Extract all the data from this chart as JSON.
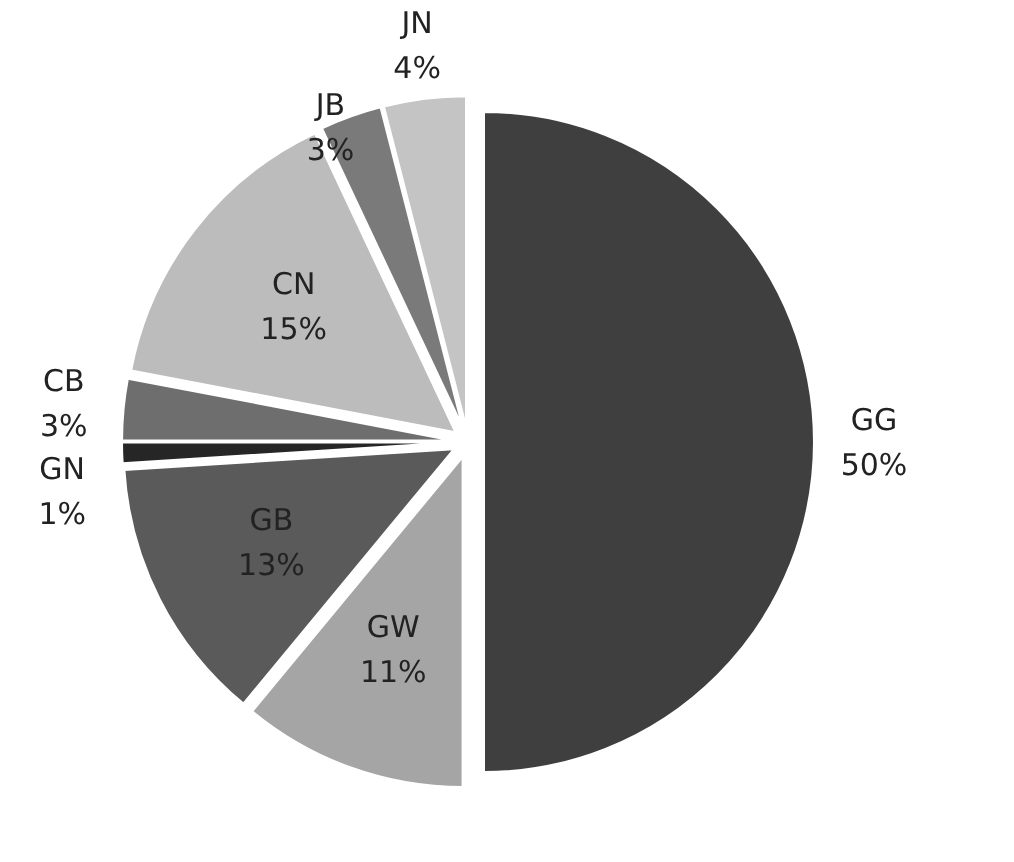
{
  "chart_data": {
    "type": "pie",
    "categories": [
      "GG",
      "GW",
      "GB",
      "GN",
      "CB",
      "CN",
      "JB",
      "JN"
    ],
    "values": [
      50,
      11,
      13,
      1,
      3,
      15,
      3,
      4
    ],
    "value_labels": [
      "50%",
      "11%",
      "13%",
      "1%",
      "3%",
      "15%",
      "3%",
      "4%"
    ],
    "colors": [
      "#3f3f3f",
      "#a5a5a5",
      "#5a5a5a",
      "#262626",
      "#6e6e6e",
      "#bcbcbc",
      "#7a7a7a",
      "#c4c4c4"
    ]
  }
}
